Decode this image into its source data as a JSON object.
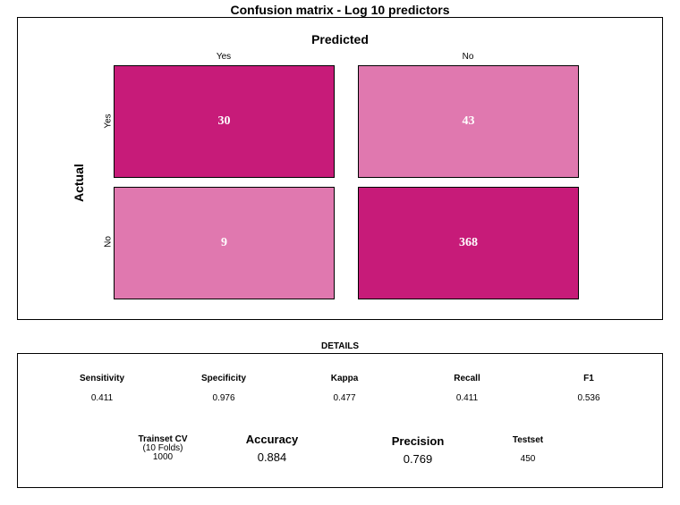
{
  "title": "Confusion matrix - Log 10 predictors",
  "chart_data": {
    "type": "heatmap",
    "title": "Confusion matrix - Log 10 predictors",
    "xlabel": "Predicted",
    "ylabel": "Actual",
    "x_categories": [
      "Yes",
      "No"
    ],
    "y_categories": [
      "Yes",
      "No"
    ],
    "matrix": [
      [
        30,
        43
      ],
      [
        9,
        368
      ]
    ],
    "colors": {
      "correct": "#C71B79",
      "incorrect": "#E078AF"
    }
  },
  "details": {
    "title": "DETAILS",
    "metrics": [
      {
        "label": "Sensitivity",
        "value": "0.411"
      },
      {
        "label": "Specificity",
        "value": "0.976"
      },
      {
        "label": "Kappa",
        "value": "0.477"
      },
      {
        "label": "Recall",
        "value": "0.411"
      },
      {
        "label": "F1",
        "value": "0.536"
      }
    ],
    "trainset": {
      "label": "Trainset CV",
      "sublabel": "(10 Folds)",
      "value": "1000"
    },
    "accuracy": {
      "label": "Accuracy",
      "value": "0.884"
    },
    "precision": {
      "label": "Precision",
      "value": "0.769"
    },
    "testset": {
      "label": "Testset",
      "value": "450"
    }
  }
}
